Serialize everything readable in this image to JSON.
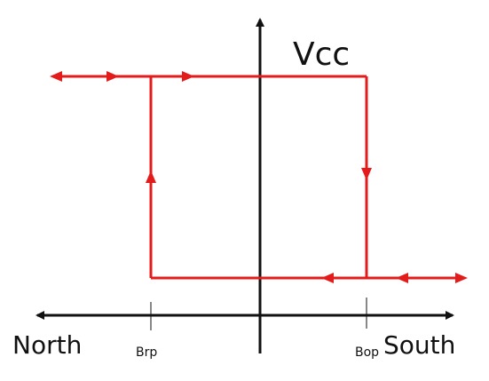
{
  "supply_label": "Vcc",
  "axis": {
    "left_label": "North",
    "right_label": "South"
  },
  "thresholds": {
    "release": "Brp",
    "operate": "Bop"
  }
}
